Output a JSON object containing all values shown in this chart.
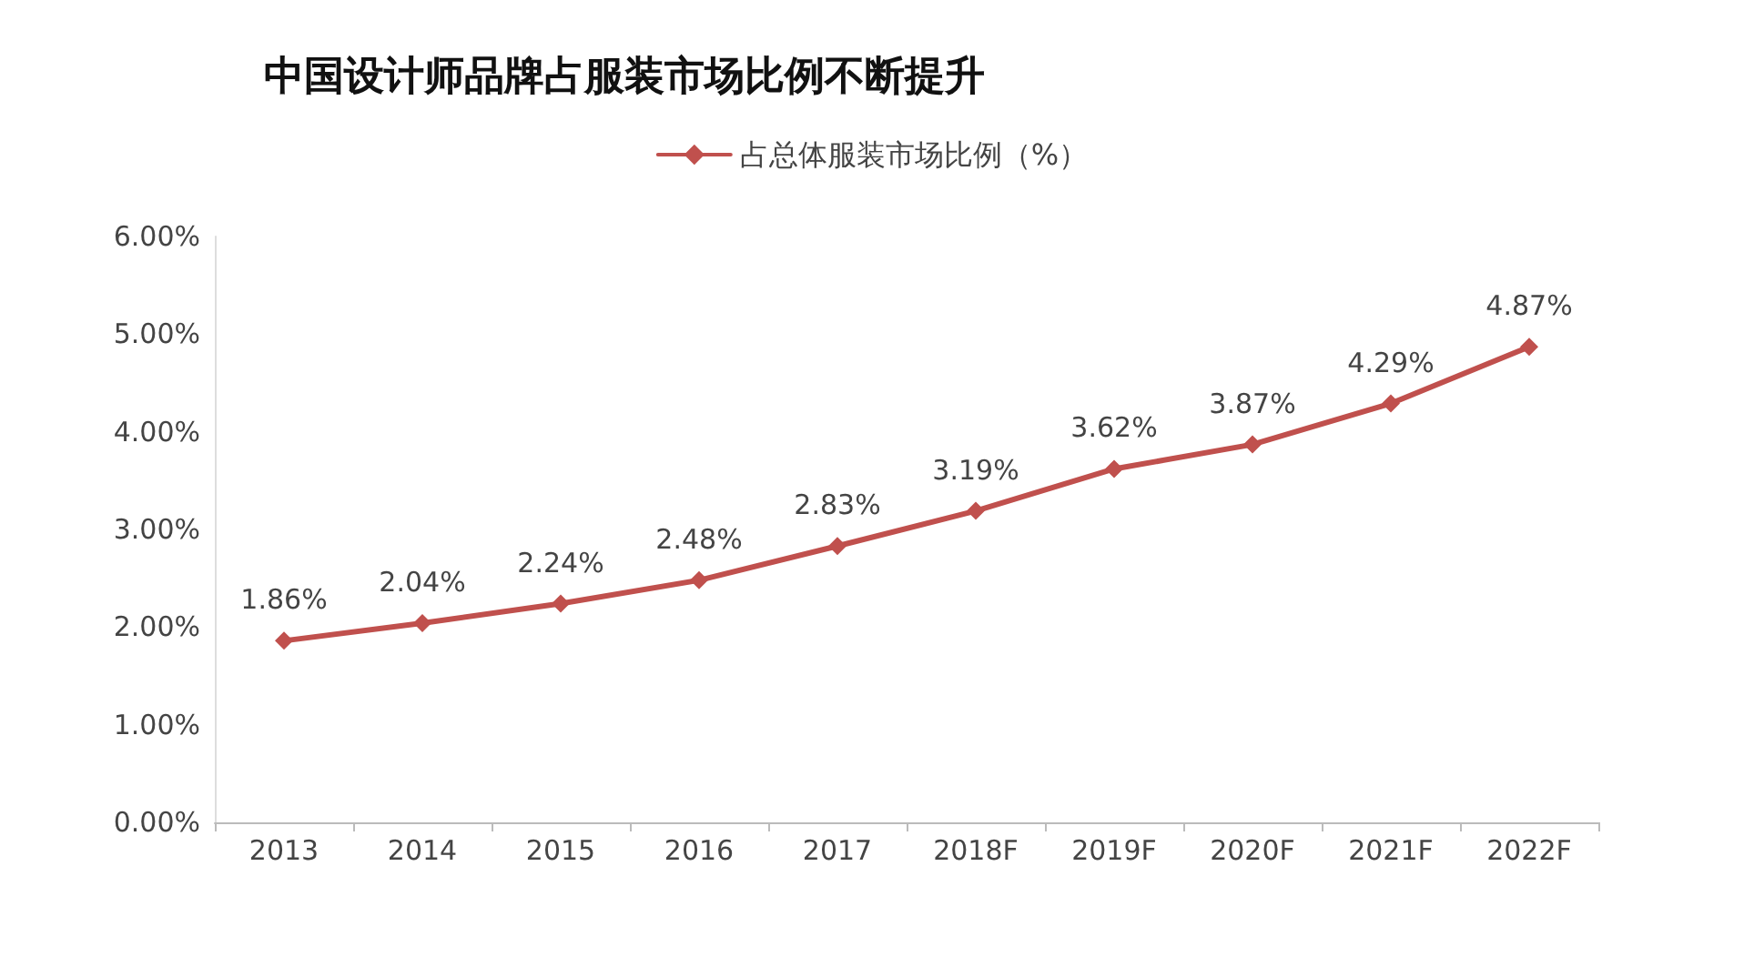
{
  "chart_data": {
    "type": "line",
    "title": "中国设计师品牌占服装市场比例不断提升",
    "categories": [
      "2013",
      "2014",
      "2015",
      "2016",
      "2017",
      "2018F",
      "2019F",
      "2020F",
      "2021F",
      "2022F"
    ],
    "series": [
      {
        "name": "占总体服装市场比例（%）",
        "color": "#c0504d",
        "values": [
          1.86,
          2.04,
          2.24,
          2.48,
          2.83,
          3.19,
          3.62,
          3.87,
          4.29,
          4.87
        ],
        "value_labels": [
          "1.86%",
          "2.04%",
          "2.24%",
          "2.48%",
          "2.83%",
          "3.19%",
          "3.62%",
          "3.87%",
          "4.29%",
          "4.87%"
        ]
      }
    ],
    "ylim": [
      0,
      6
    ],
    "yticks": [
      {
        "value": 0,
        "label": "0.00%"
      },
      {
        "value": 1,
        "label": "1.00%"
      },
      {
        "value": 2,
        "label": "2.00%"
      },
      {
        "value": 3,
        "label": "3.00%"
      },
      {
        "value": 4,
        "label": "4.00%"
      },
      {
        "value": 5,
        "label": "5.00%"
      },
      {
        "value": 6,
        "label": "6.00%"
      }
    ],
    "grid": false,
    "legend": "top",
    "marker": "diamond",
    "line_style": "solid"
  }
}
